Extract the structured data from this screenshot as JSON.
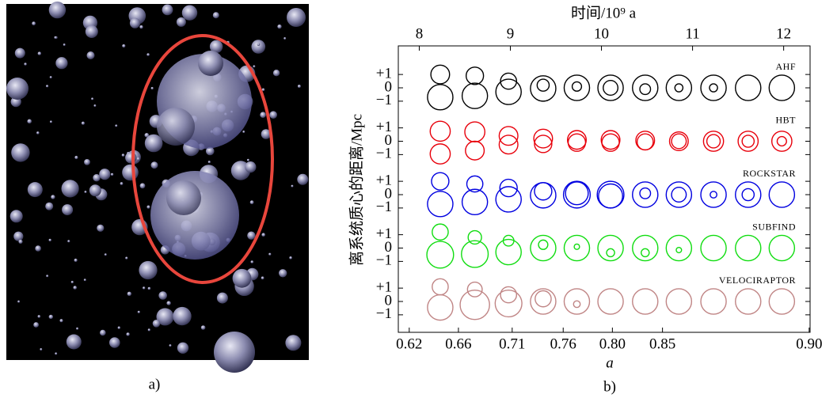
{
  "panels": {
    "a": {
      "label": "a)"
    }
  },
  "chart_data": {
    "type": "bubble-rows",
    "label": "b)",
    "x_label": "a",
    "x2_label": "时间/10⁹ a",
    "y_label": "离系统质心的距离/Mpc",
    "xlim": [
      7.77,
      12.29
    ],
    "xticks": [
      {
        "value": 7.89,
        "label": "0.62"
      },
      {
        "value": 8.43,
        "label": "0.66"
      },
      {
        "value": 9.02,
        "label": "0.71"
      },
      {
        "value": 9.58,
        "label": "0.76"
      },
      {
        "value": 10.12,
        "label": "0.80"
      },
      {
        "value": 10.67,
        "label": "0.85"
      },
      {
        "value": 12.28,
        "label": "0.90"
      }
    ],
    "x2ticks": [
      8,
      9,
      10,
      11,
      12
    ],
    "ylim": [
      -2,
      2
    ],
    "yticks": [
      {
        "value": 1,
        "label": "+1"
      },
      0,
      {
        "value": -1,
        "label": "−1"
      }
    ],
    "x": [
      8.23,
      8.61,
      8.98,
      9.36,
      9.73,
      10.1,
      10.48,
      10.85,
      11.23,
      11.61,
      11.98
    ],
    "rows": [
      {
        "name": "AHF",
        "color": "#000000",
        "circles": [
          {
            "y": [
              -0.7,
              -0.6,
              -0.3,
              -0.05,
              0,
              0,
              0,
              0,
              0,
              0,
              0
            ],
            "r": [
              0.95,
              0.95,
              0.95,
              0.95,
              0.95,
              0.95,
              0.95,
              0.95,
              0.95,
              0.95,
              0.95
            ]
          },
          {
            "y": [
              1.0,
              0.9,
              0.5,
              0.2,
              0.1,
              0,
              -0.1,
              0,
              0,
              null,
              null
            ],
            "r": [
              0.7,
              0.65,
              0.6,
              0.45,
              0.35,
              0.55,
              0.4,
              0.3,
              0.3,
              null,
              null
            ]
          }
        ]
      },
      {
        "name": "HBT",
        "color": "#e8000b",
        "circles": [
          {
            "y": [
              0.75,
              0.7,
              0.4,
              0.2,
              0.1,
              0.1,
              0.05,
              0,
              0,
              0,
              0
            ],
            "r": [
              0.75,
              0.75,
              0.7,
              0.7,
              0.7,
              0.7,
              0.7,
              0.7,
              0.75,
              0.75,
              0.75
            ]
          },
          {
            "y": [
              -0.95,
              -0.7,
              -0.25,
              -0.2,
              -0.1,
              -0.1,
              -0.05,
              0,
              0,
              0,
              0
            ],
            "r": [
              0.75,
              0.7,
              0.7,
              0.65,
              0.65,
              0.65,
              0.6,
              0.55,
              0.5,
              0.45,
              0.35
            ]
          }
        ]
      },
      {
        "name": "ROCKSTAR",
        "color": "#0000e0",
        "circles": [
          {
            "y": [
              -0.7,
              -0.55,
              -0.35,
              -0.05,
              0,
              0,
              0,
              0,
              0,
              0,
              0
            ],
            "r": [
              0.95,
              0.95,
              0.95,
              0.95,
              1.0,
              1.0,
              0.95,
              0.95,
              0.95,
              0.95,
              0.95
            ]
          },
          {
            "y": [
              1.0,
              0.8,
              0.5,
              0.25,
              0.1,
              -0.1,
              0.1,
              0,
              0,
              0,
              null
            ],
            "r": [
              0.65,
              0.6,
              0.65,
              0.65,
              0.85,
              0.9,
              0.4,
              0.55,
              0.25,
              0.45,
              null
            ]
          }
        ]
      },
      {
        "name": "SUBFIND",
        "color": "#11dd11",
        "circles": [
          {
            "y": [
              -0.5,
              -0.45,
              -0.3,
              0,
              0,
              0,
              0,
              0,
              0,
              0,
              0
            ],
            "r": [
              1.0,
              1.0,
              0.95,
              0.95,
              0.95,
              0.95,
              0.95,
              0.95,
              0.95,
              0.95,
              0.95
            ]
          },
          {
            "y": [
              1.2,
              0.8,
              0.55,
              0.25,
              0.1,
              -0.35,
              -0.35,
              -0.15,
              null,
              null,
              null
            ],
            "r": [
              0.6,
              0.5,
              0.4,
              0.35,
              0.2,
              0.3,
              0.3,
              0.2,
              null,
              null,
              null
            ]
          }
        ]
      },
      {
        "name": "VELOCIRAPTOR",
        "color": "#c08585",
        "circles": [
          {
            "y": [
              -0.45,
              -0.25,
              -0.15,
              0,
              0,
              0,
              0,
              0,
              0,
              0,
              0
            ],
            "r": [
              0.95,
              1.1,
              1.0,
              0.95,
              0.95,
              0.95,
              0.95,
              0.95,
              0.95,
              0.95,
              0.95
            ]
          },
          {
            "y": [
              1.1,
              0.9,
              0.5,
              0.2,
              -0.2,
              null,
              null,
              null,
              null,
              null,
              null
            ],
            "r": [
              0.6,
              0.55,
              0.6,
              0.6,
              0.25,
              null,
              null,
              null,
              null,
              null,
              null
            ]
          }
        ]
      }
    ]
  }
}
